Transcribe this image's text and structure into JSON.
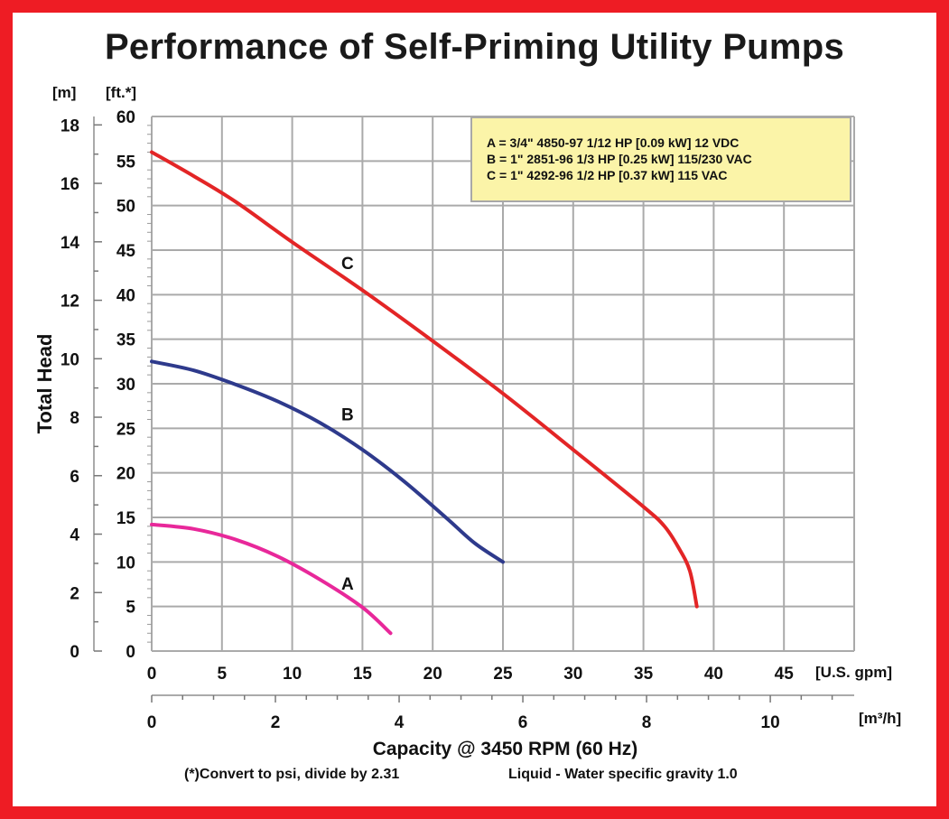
{
  "chart_data": {
    "type": "line",
    "title": "Performance of Self-Priming Utility Pumps",
    "ylabel": "Total Head",
    "ylabel_units": [
      "[m]",
      "[ft.*]"
    ],
    "xlabel": "Capacity @ 3450 RPM (60 Hz)",
    "xlabel_units": [
      "[U.S. gpm]",
      "[m³/h]"
    ],
    "xlim_gpm": [
      0,
      50
    ],
    "ylim_ft": [
      0,
      60
    ],
    "x_ticks_gpm": [
      0,
      5,
      10,
      15,
      20,
      25,
      30,
      35,
      40,
      45
    ],
    "y_ticks_ft": [
      0,
      5,
      10,
      15,
      20,
      25,
      30,
      35,
      40,
      45,
      50,
      55,
      60
    ],
    "y_ticks_m": [
      0,
      2,
      4,
      6,
      8,
      10,
      12,
      14,
      16,
      18
    ],
    "x_ticks_m3h": [
      0,
      2,
      4,
      6,
      8,
      10
    ],
    "grid": true,
    "legend_position": "top-right",
    "legend": [
      "A = 3/4\" 4850-97 1/12 HP [0.09 kW] 12 VDC",
      "B = 1\" 2851-96 1/3 HP [0.25 kW] 115/230 VAC",
      "C = 1\" 4292-96 1/2 HP [0.37 kW] 115 VAC"
    ],
    "series": [
      {
        "name": "A",
        "color": "#e8289a",
        "label_at": [
          13.5,
          7.5
        ],
        "x": [
          0,
          3,
          6,
          9,
          12,
          15,
          17
        ],
        "y": [
          14.2,
          13.7,
          12.5,
          10.6,
          8.0,
          4.9,
          2.0
        ]
      },
      {
        "name": "B",
        "color": "#2e3a8c",
        "label_at": [
          13.5,
          26.5
        ],
        "x": [
          0,
          3,
          6,
          9,
          12,
          15,
          18,
          21,
          23,
          25
        ],
        "y": [
          32.5,
          31.5,
          29.9,
          28.0,
          25.6,
          22.6,
          19.0,
          14.9,
          12.1,
          10.0
        ]
      },
      {
        "name": "C",
        "color": "#e32526",
        "label_at": [
          13.5,
          43.5
        ],
        "x": [
          0,
          3,
          6,
          10,
          15,
          20,
          25,
          30,
          35,
          36.5,
          37.5,
          38.3,
          38.8
        ],
        "y": [
          56.0,
          53.3,
          50.4,
          45.9,
          40.5,
          34.8,
          28.9,
          22.6,
          16.2,
          14.0,
          11.6,
          9.0,
          5.0
        ]
      }
    ]
  },
  "footnote_left": "(*)Convert to psi, divide by 2.31",
  "footnote_right": "Liquid - Water specific gravity 1.0",
  "colors": {
    "frame": "#ee1c24",
    "grid": "#aaaaaa",
    "legend_bg": "#fbf4a8"
  }
}
